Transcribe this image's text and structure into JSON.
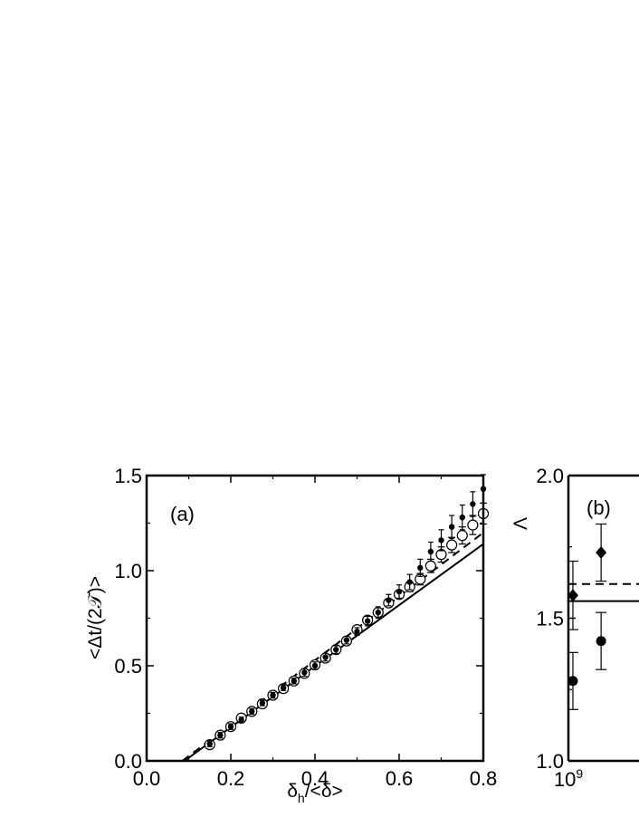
{
  "chart_data": [
    {
      "type": "scatter",
      "panel_label": "(a)",
      "xlabel": "δ_h/<δ>",
      "ylabel": "<Δt/(2𝒯)>",
      "xlim": [
        0.0,
        0.8
      ],
      "ylim": [
        0.0,
        1.5
      ],
      "xticks": [
        "0.0",
        "0.2",
        "0.4",
        "0.6",
        "0.8"
      ],
      "yticks": [
        "0.0",
        "0.5",
        "1.0",
        "1.5"
      ],
      "series": [
        {
          "marker": "filled-circle-small",
          "points": [
            [
              0.15,
              0.09,
              0.015
            ],
            [
              0.175,
              0.135,
              0.015
            ],
            [
              0.2,
              0.18,
              0.015
            ],
            [
              0.225,
              0.215,
              0.015
            ],
            [
              0.25,
              0.26,
              0.015
            ],
            [
              0.275,
              0.305,
              0.015
            ],
            [
              0.3,
              0.345,
              0.015
            ],
            [
              0.325,
              0.385,
              0.015
            ],
            [
              0.35,
              0.42,
              0.015
            ],
            [
              0.375,
              0.465,
              0.02
            ],
            [
              0.4,
              0.5,
              0.02
            ],
            [
              0.425,
              0.545,
              0.02
            ],
            [
              0.45,
              0.585,
              0.02
            ],
            [
              0.475,
              0.635,
              0.02
            ],
            [
              0.5,
              0.68,
              0.02
            ],
            [
              0.525,
              0.735,
              0.025
            ],
            [
              0.55,
              0.78,
              0.03
            ],
            [
              0.575,
              0.845,
              0.03
            ],
            [
              0.6,
              0.89,
              0.035
            ],
            [
              0.625,
              0.94,
              0.04
            ],
            [
              0.65,
              1.015,
              0.045
            ],
            [
              0.675,
              1.1,
              0.05
            ],
            [
              0.7,
              1.16,
              0.055
            ],
            [
              0.725,
              1.23,
              0.06
            ],
            [
              0.75,
              1.28,
              0.065
            ],
            [
              0.775,
              1.35,
              0.065
            ],
            [
              0.8,
              1.43,
              0.075
            ]
          ]
        },
        {
          "marker": "open-circle",
          "points": [
            [
              0.15,
              0.085,
              0.01
            ],
            [
              0.175,
              0.135,
              0.01
            ],
            [
              0.2,
              0.18,
              0.01
            ],
            [
              0.225,
              0.225,
              0.01
            ],
            [
              0.25,
              0.26,
              0.01
            ],
            [
              0.275,
              0.3,
              0.01
            ],
            [
              0.3,
              0.345,
              0.01
            ],
            [
              0.325,
              0.38,
              0.01
            ],
            [
              0.35,
              0.42,
              0.01
            ],
            [
              0.375,
              0.46,
              0.01
            ],
            [
              0.4,
              0.505,
              0.01
            ],
            [
              0.425,
              0.54,
              0.01
            ],
            [
              0.45,
              0.585,
              0.01
            ],
            [
              0.475,
              0.63,
              0.01
            ],
            [
              0.5,
              0.69,
              0.015
            ],
            [
              0.525,
              0.74,
              0.015
            ],
            [
              0.55,
              0.78,
              0.015
            ],
            [
              0.575,
              0.83,
              0.02
            ],
            [
              0.6,
              0.875,
              0.02
            ],
            [
              0.625,
              0.915,
              0.025
            ],
            [
              0.65,
              0.955,
              0.03
            ],
            [
              0.675,
              1.025,
              0.035
            ],
            [
              0.7,
              1.085,
              0.04
            ],
            [
              0.725,
              1.135,
              0.04
            ],
            [
              0.75,
              1.185,
              0.045
            ],
            [
              0.775,
              1.24,
              0.05
            ],
            [
              0.8,
              1.3,
              0.055
            ]
          ]
        }
      ],
      "lines": [
        {
          "style": "solid",
          "x": [
            0.09,
            0.8
          ],
          "y": [
            0.0,
            1.14
          ]
        },
        {
          "style": "dashed",
          "x": [
            0.085,
            0.8
          ],
          "y": [
            0.0,
            1.2
          ]
        }
      ]
    },
    {
      "type": "scatter",
      "panel_label": "(b)",
      "ylabel": "Λ",
      "xscale": "log",
      "ylim": [
        1.0,
        2.0
      ],
      "xtick_first": {
        "base": "10",
        "exp": "9"
      },
      "yticks": [
        "1.0",
        "1.5",
        "2.0"
      ],
      "series": [
        {
          "marker": "diamond",
          "points": [
            [
              1.1,
              1.58,
              0.12
            ],
            [
              2.0,
              1.73,
              0.1
            ]
          ]
        },
        {
          "marker": "filled-circle",
          "points": [
            [
              1.1,
              1.28,
              0.1
            ],
            [
              2.0,
              1.42,
              0.1
            ]
          ]
        }
      ],
      "hlines": [
        {
          "style": "solid",
          "y": 1.56
        },
        {
          "style": "dashed",
          "y": 1.62
        }
      ]
    }
  ]
}
